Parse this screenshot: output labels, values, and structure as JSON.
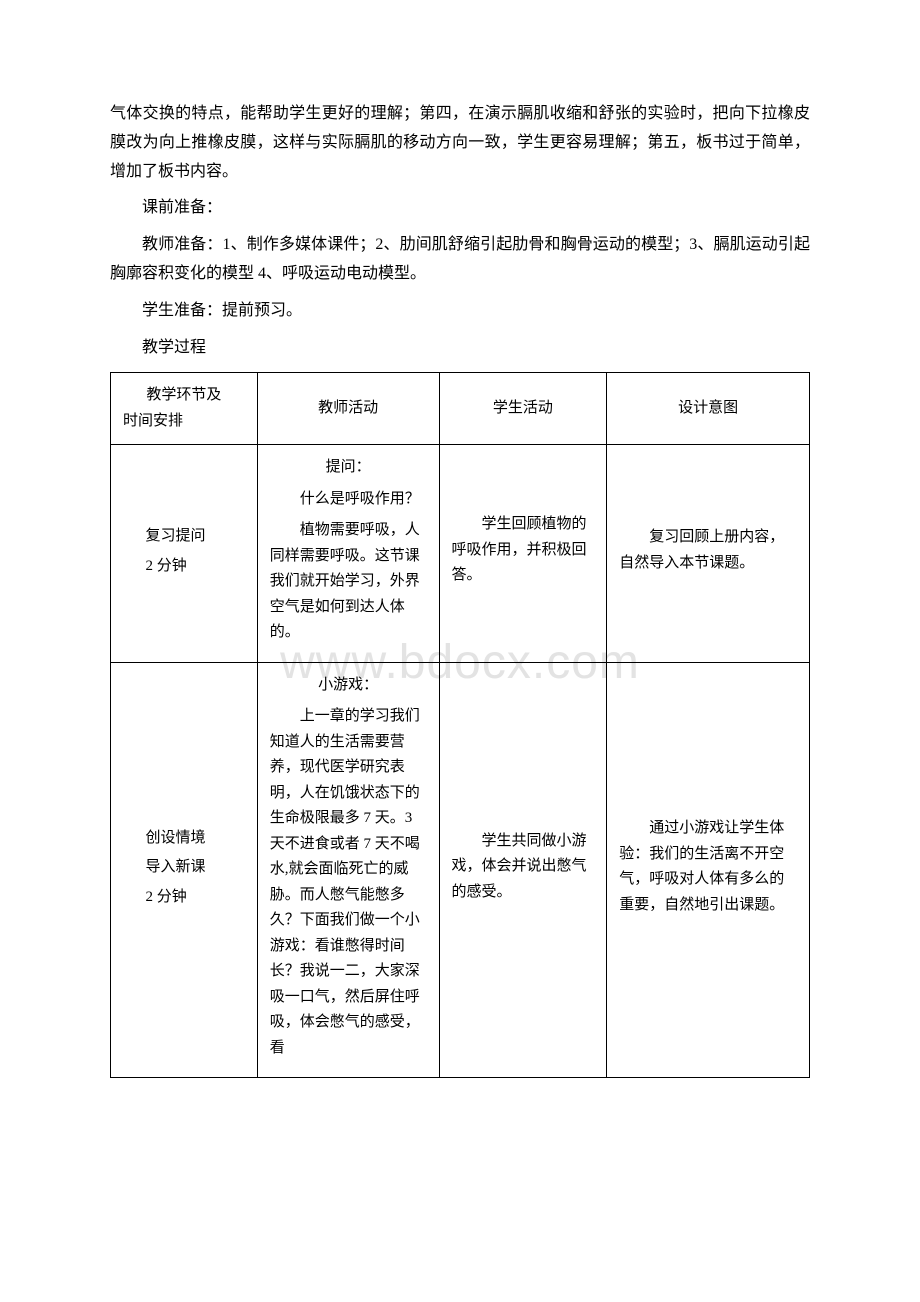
{
  "watermark": "www.bdocx.com",
  "paragraphs": {
    "p1": "气体交换的特点，能帮助学生更好的理解；第四，在演示膈肌收缩和舒张的实验时，把向下拉橡皮膜改为向上推橡皮膜，这样与实际膈肌的移动方向一致，学生更容易理解；第五，板书过于简单，增加了板书内容。",
    "p2": "课前准备：",
    "p3": "教师准备：1、制作多媒体课件；2、肋间肌舒缩引起肋骨和胸骨运动的模型；3、膈肌运动引起胸廓容积变化的模型 4、呼吸运动电动模型。",
    "p4": "学生准备：提前预习。",
    "p5": "教学过程"
  },
  "table": {
    "header": {
      "c1a": "教学环节及",
      "c1b": "时间安排",
      "c2": "教师活动",
      "c3": "学生活动",
      "c4": "设计意图"
    },
    "row1": {
      "c1a": "复习提问",
      "c1b": "2 分钟",
      "c2a": "提问：",
      "c2b": "什么是呼吸作用？",
      "c2c": "植物需要呼吸，人同样需要呼吸。这节课我们就开始学习，外界空气是如何到达人体的。",
      "c3": "学生回顾植物的呼吸作用，并积极回答。",
      "c4": "复习回顾上册内容，自然导入本节课题。"
    },
    "row2": {
      "c1a": "创设情境",
      "c1b": "导入新课",
      "c1c": "2 分钟",
      "c2a": "小游戏：",
      "c2b": "上一章的学习我们知道人的生活需要营养，现代医学研究表明，人在饥饿状态下的生命极限最多 7 天。3 天不进食或者 7 天不喝水,就会面临死亡的威胁。而人憋气能憋多久？下面我们做一个小游戏：看谁憋得时间长？我说一二，大家深吸一口气，然后屏住呼吸，体会憋气的感受，看",
      "c3": "学生共同做小游戏，体会并说出憋气的感受。",
      "c4": "通过小游戏让学生体验：我们的生活离不开空气，呼吸对人体有多么的重要，自然地引出课题。"
    }
  }
}
